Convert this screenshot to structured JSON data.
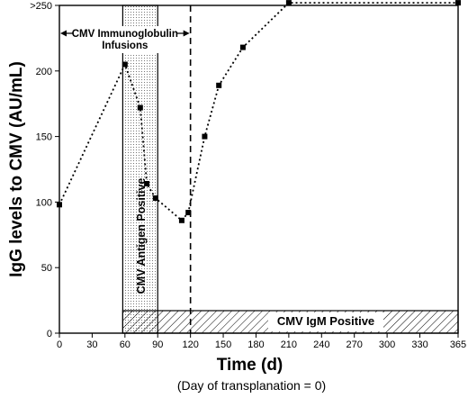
{
  "chart_data": {
    "type": "line",
    "title": "",
    "xlabel": "Time (d)",
    "xlabel_note": "(Day of transplanation = 0)",
    "ylabel": "IgG levels to CMV (AU/mL)",
    "xlim": [
      0,
      365
    ],
    "ylim": [
      0,
      250
    ],
    "x_ticks": [
      0,
      30,
      60,
      90,
      120,
      150,
      180,
      210,
      240,
      270,
      300,
      330,
      365
    ],
    "y_ticks": [
      0,
      50,
      100,
      150,
      200,
      250
    ],
    "y_tick_labels": [
      "0",
      "50",
      "100",
      "150",
      "200",
      ">250"
    ],
    "grid": false,
    "series": [
      {
        "x": [
          0,
          60,
          74,
          80,
          88,
          112,
          118,
          133,
          146,
          168,
          210,
          365
        ],
        "y": [
          98,
          205,
          172,
          114,
          103,
          86,
          92,
          150,
          189,
          218,
          252,
          252
        ]
      }
    ],
    "annotations": {
      "immunoglobulin_label_line1": "CMV Immunoglobulin",
      "immunoglobulin_label_line2": "Infusions",
      "immunoglobulin_range": [
        0,
        120
      ],
      "antigen_label": "CMV Antigen Positive",
      "antigen_range": [
        58,
        90
      ],
      "igm_label": "CMV IgM Positive",
      "igm_range": [
        58,
        365
      ],
      "dashed_line_x": 120
    }
  }
}
